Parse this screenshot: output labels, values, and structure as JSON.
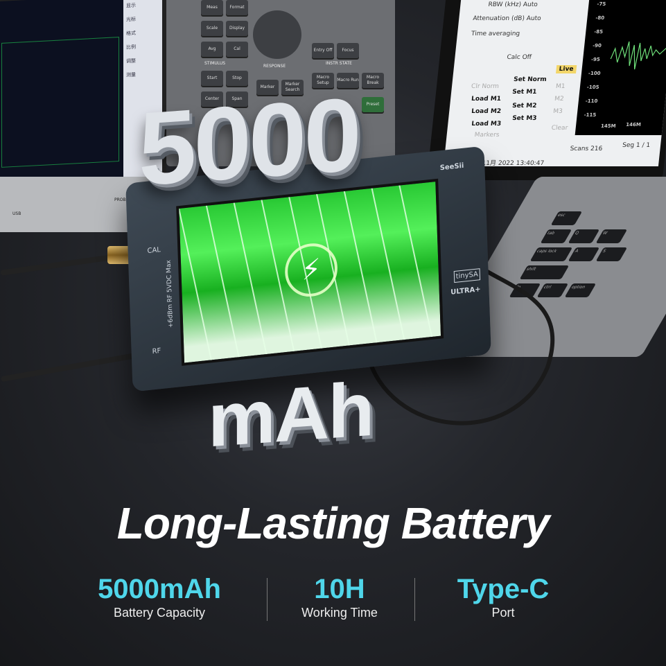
{
  "background_monitor": {
    "side_labels": [
      "显示",
      "光标",
      "格式",
      "比例",
      "调整",
      "测量"
    ],
    "probe_label": "PROBE POWER",
    "usb_label": "USB"
  },
  "instrument_panel": {
    "buttons": [
      "Meas",
      "Format",
      "Scale",
      "Display",
      "Avg",
      "Cal",
      "Start",
      "Stop",
      "Center",
      "Span",
      "Marker",
      "Marker Search",
      "Entry Off",
      "Focus",
      "Macro Setup",
      "Macro Run",
      "Macro Break",
      "Preset"
    ],
    "sections": [
      "STIMULUS",
      "RESPONSE",
      "INSTR STATE"
    ]
  },
  "laptop_screen": {
    "rbw": "RBW (kHz)  Auto",
    "attenuation": "Attenuation (dB)  Auto",
    "time_averaging": "Time averaging",
    "calc": "Calc  Off",
    "clr_norm": "Clr Norm",
    "set_norm": "Set Norm",
    "live": "Live",
    "load": [
      "Load M1",
      "Load M2",
      "Load M3"
    ],
    "set": [
      "Set M1",
      "Set M2",
      "Set M3"
    ],
    "m": [
      "M1",
      "M2",
      "M3"
    ],
    "markers": "Markers",
    "clear": "Clear",
    "datetime": "周一 07 11月 2022 13:40:47",
    "scans": "Scans 216",
    "seg": "Seg 1 / 1",
    "y_ticks": [
      "-75",
      "-80",
      "-85",
      "-90",
      "-95",
      "-100",
      "-105",
      "-110",
      "-115"
    ],
    "x_ticks": [
      "145M",
      "146M"
    ]
  },
  "keyboard": {
    "keys": [
      "esc",
      "tab",
      "caps lock",
      "shift",
      "fn",
      "Q",
      "W",
      "A",
      "S",
      "ctrl",
      "option"
    ]
  },
  "device": {
    "brand": "SeeSii",
    "cal": "CAL",
    "rf": "RF",
    "rating": "+6dBm RF  5VDC Max",
    "model": "tinySA",
    "variant": "ULTRA+",
    "icon": "lightning-bolt-icon",
    "screen_color": "#2fd23a"
  },
  "hero": {
    "number": "5000",
    "unit": "mAh"
  },
  "headline": "Long-Lasting Battery",
  "stats": [
    {
      "value": "5000mAh",
      "label": "Battery Capacity"
    },
    {
      "value": "10H",
      "label": "Working Time"
    },
    {
      "value": "Type-C",
      "label": "Port"
    }
  ],
  "colors": {
    "accent": "#4fd6ea",
    "headline": "#ffffff"
  }
}
